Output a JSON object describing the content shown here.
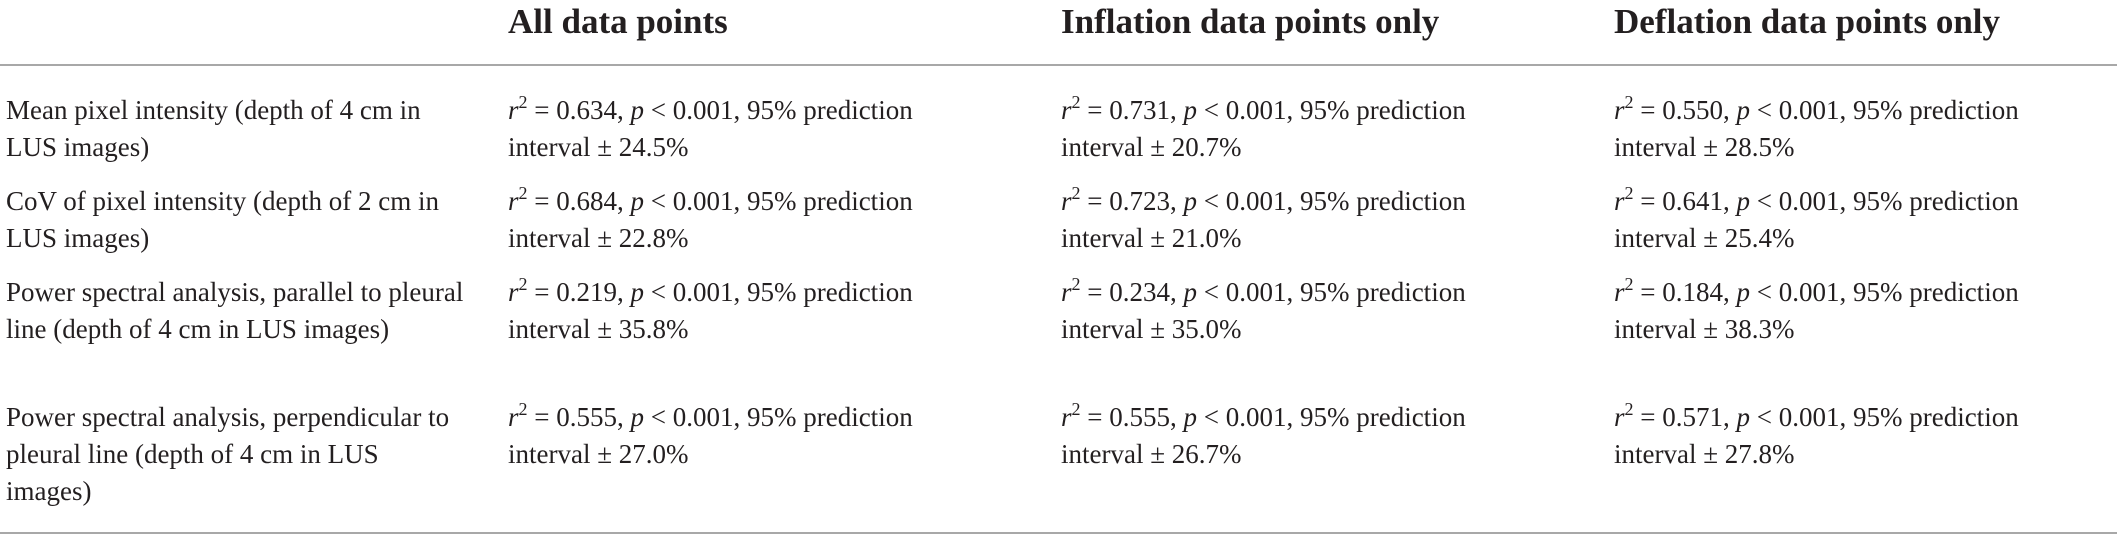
{
  "table": {
    "columns": [
      "All data points",
      "Inflation data points only",
      "Deflation data points only"
    ],
    "rows": [
      {
        "metric": "Mean pixel intensity (depth of 4 cm in LUS images)",
        "cells": [
          {
            "r2": "0.634",
            "p": "< 0.001",
            "interval": "± 24.5%"
          },
          {
            "r2": "0.731",
            "p": "< 0.001",
            "interval": "± 20.7%"
          },
          {
            "r2": "0.550",
            "p": "< 0.001",
            "interval": "± 28.5%"
          }
        ]
      },
      {
        "metric": "CoV of pixel intensity (depth of 2 cm in LUS images)",
        "cells": [
          {
            "r2": "0.684",
            "p": "< 0.001",
            "interval": "± 22.8%"
          },
          {
            "r2": "0.723",
            "p": "< 0.001",
            "interval": "± 21.0%"
          },
          {
            "r2": "0.641",
            "p": "< 0.001",
            "interval": "± 25.4%"
          }
        ]
      },
      {
        "metric": "Power spectral analysis, parallel to pleural line (depth of 4 cm in LUS images)",
        "cells": [
          {
            "r2": "0.219",
            "p": "< 0.001",
            "interval": "± 35.8%"
          },
          {
            "r2": "0.234",
            "p": "< 0.001",
            "interval": "± 35.0%"
          },
          {
            "r2": "0.184",
            "p": "< 0.001",
            "interval": "± 38.3%"
          }
        ]
      },
      {
        "metric": "Power spectral analysis, perpendicular to pleural line (depth of 4 cm in LUS images)",
        "cells": [
          {
            "r2": "0.555",
            "p": "< 0.001",
            "interval": "± 27.0%"
          },
          {
            "r2": "0.555",
            "p": "< 0.001",
            "interval": "± 26.7%"
          },
          {
            "r2": "0.571",
            "p": "< 0.001",
            "interval": "± 27.8%"
          }
        ]
      }
    ]
  },
  "labels": {
    "r_symbol": "r",
    "r_exponent": "2",
    "equals": " = ",
    "p_symbol": "p",
    "prediction_text": ", 95% prediction",
    "interval_word": "interval "
  }
}
